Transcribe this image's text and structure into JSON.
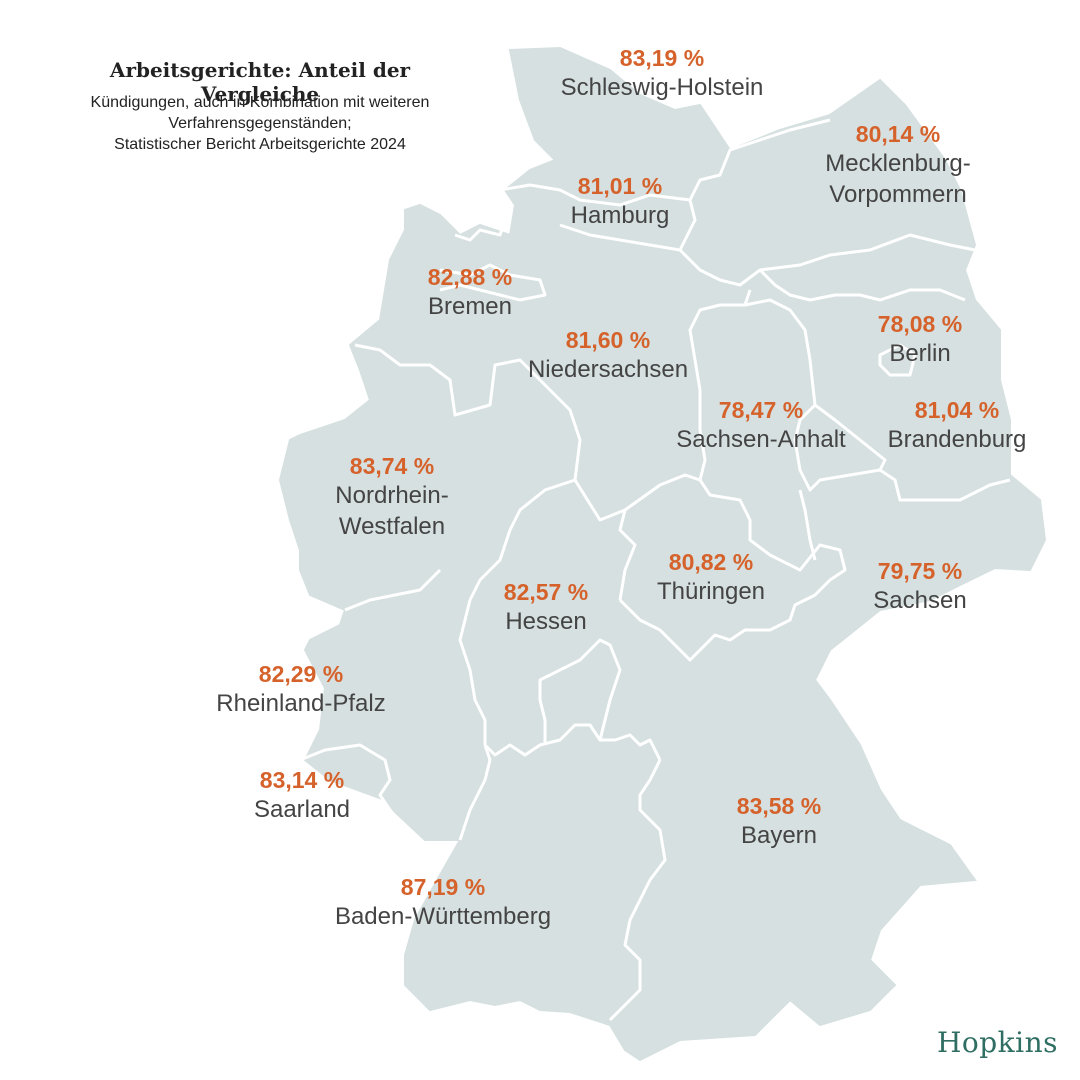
{
  "header": {
    "title": "Arbeitsgerichte: Anteil der Vergleiche",
    "subtitle_lines": [
      "Kündigungen, auch in Kombination mit weiteren",
      "Verfahrensgegenständen;",
      "Statistischer Bericht Arbeitsgerichte 2024"
    ]
  },
  "states": [
    {
      "id": "sh",
      "name_lines": [
        "Schleswig-Holstein"
      ],
      "value": "83,19 %"
    },
    {
      "id": "mv",
      "name_lines": [
        "Mecklenburg-",
        "Vorpommern"
      ],
      "value": "80,14 %"
    },
    {
      "id": "hh",
      "name_lines": [
        "Hamburg"
      ],
      "value": "81,01 %"
    },
    {
      "id": "hb",
      "name_lines": [
        "Bremen"
      ],
      "value": "82,88 %"
    },
    {
      "id": "ni",
      "name_lines": [
        "Niedersachsen"
      ],
      "value": "81,60 %"
    },
    {
      "id": "be",
      "name_lines": [
        "Berlin"
      ],
      "value": "78,08 %"
    },
    {
      "id": "st",
      "name_lines": [
        "Sachsen-Anhalt"
      ],
      "value": "78,47 %"
    },
    {
      "id": "bb",
      "name_lines": [
        "Brandenburg"
      ],
      "value": "81,04 %"
    },
    {
      "id": "nw",
      "name_lines": [
        "Nordrhein-",
        "Westfalen"
      ],
      "value": "83,74 %"
    },
    {
      "id": "th",
      "name_lines": [
        "Thüringen"
      ],
      "value": "80,82 %"
    },
    {
      "id": "sn",
      "name_lines": [
        "Sachsen"
      ],
      "value": "79,75 %"
    },
    {
      "id": "he",
      "name_lines": [
        "Hessen"
      ],
      "value": "82,57 %"
    },
    {
      "id": "rp",
      "name_lines": [
        "Rheinland-Pfalz"
      ],
      "value": "82,29 %"
    },
    {
      "id": "sl",
      "name_lines": [
        "Saarland"
      ],
      "value": "83,14 %"
    },
    {
      "id": "by",
      "name_lines": [
        "Bayern"
      ],
      "value": "83,58 %"
    },
    {
      "id": "bw",
      "name_lines": [
        "Baden-Württemberg"
      ],
      "value": "87,19 %"
    }
  ],
  "brand": "Hopkins",
  "colors": {
    "land": "#d6e0e0",
    "border": "#ffffff",
    "value": "#d6622b",
    "name": "#444444",
    "brand": "#2f6e62"
  }
}
